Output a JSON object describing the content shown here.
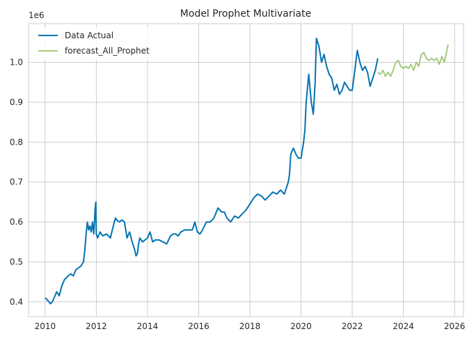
{
  "chart_data": {
    "type": "line",
    "title": "Model Prophet Multivariate",
    "xlabel": "",
    "ylabel": "",
    "y_offset_label": "1e6",
    "xlim": [
      2009.35,
      2026.35
    ],
    "ylim": [
      0.363,
      1.097
    ],
    "x_ticks": [
      2010,
      2012,
      2014,
      2016,
      2018,
      2020,
      2022,
      2024,
      2026
    ],
    "y_ticks": [
      0.4,
      0.5,
      0.6,
      0.7,
      0.8,
      0.9,
      1.0
    ],
    "grid": true,
    "legend_position": "top-left",
    "series": [
      {
        "name": "Data Actual",
        "color": "#0072B2",
        "x": [
          2010.0,
          2010.08,
          2010.15,
          2010.2,
          2010.28,
          2010.35,
          2010.45,
          2010.55,
          2010.65,
          2010.75,
          2010.9,
          2011.0,
          2011.1,
          2011.2,
          2011.3,
          2011.4,
          2011.5,
          2011.55,
          2011.6,
          2011.65,
          2011.7,
          2011.75,
          2011.8,
          2011.85,
          2011.9,
          2011.95,
          2011.98,
          2012.0,
          2012.05,
          2012.15,
          2012.25,
          2012.4,
          2012.55,
          2012.7,
          2012.75,
          2012.8,
          2012.9,
          2013.0,
          2013.1,
          2013.2,
          2013.3,
          2013.4,
          2013.5,
          2013.55,
          2013.6,
          2013.65,
          2013.7,
          2013.8,
          2013.9,
          2014.0,
          2014.1,
          2014.2,
          2014.3,
          2014.45,
          2014.6,
          2014.75,
          2014.9,
          2015.0,
          2015.1,
          2015.2,
          2015.3,
          2015.45,
          2015.6,
          2015.75,
          2015.85,
          2015.95,
          2016.05,
          2016.15,
          2016.3,
          2016.45,
          2016.6,
          2016.75,
          2016.9,
          2017.0,
          2017.1,
          2017.25,
          2017.4,
          2017.55,
          2017.7,
          2017.85,
          2018.0,
          2018.15,
          2018.3,
          2018.45,
          2018.6,
          2018.75,
          2018.9,
          2019.05,
          2019.2,
          2019.35,
          2019.5,
          2019.55,
          2019.6,
          2019.7,
          2019.8,
          2019.9,
          2020.0,
          2020.05,
          2020.1,
          2020.15,
          2020.2,
          2020.3,
          2020.4,
          2020.48,
          2020.55,
          2020.6,
          2020.7,
          2020.8,
          2020.9,
          2021.0,
          2021.1,
          2021.2,
          2021.3,
          2021.4,
          2021.5,
          2021.6,
          2021.7,
          2021.8,
          2021.9,
          2022.0,
          2022.1,
          2022.2,
          2022.3,
          2022.4,
          2022.5,
          2022.6,
          2022.7,
          2022.8,
          2022.9,
          2023.0
        ],
        "y": [
          0.41,
          0.405,
          0.4,
          0.395,
          0.4,
          0.41,
          0.425,
          0.415,
          0.44,
          0.455,
          0.465,
          0.47,
          0.465,
          0.48,
          0.485,
          0.49,
          0.5,
          0.53,
          0.57,
          0.6,
          0.58,
          0.59,
          0.575,
          0.6,
          0.57,
          0.63,
          0.65,
          0.57,
          0.56,
          0.575,
          0.565,
          0.57,
          0.56,
          0.6,
          0.61,
          0.605,
          0.6,
          0.605,
          0.6,
          0.56,
          0.575,
          0.55,
          0.53,
          0.515,
          0.52,
          0.545,
          0.56,
          0.55,
          0.555,
          0.56,
          0.575,
          0.55,
          0.555,
          0.555,
          0.55,
          0.545,
          0.565,
          0.57,
          0.57,
          0.565,
          0.575,
          0.58,
          0.58,
          0.58,
          0.6,
          0.575,
          0.57,
          0.58,
          0.6,
          0.6,
          0.61,
          0.635,
          0.625,
          0.625,
          0.61,
          0.6,
          0.615,
          0.61,
          0.62,
          0.63,
          0.645,
          0.66,
          0.67,
          0.665,
          0.655,
          0.665,
          0.675,
          0.67,
          0.68,
          0.67,
          0.7,
          0.72,
          0.77,
          0.785,
          0.77,
          0.76,
          0.76,
          0.78,
          0.8,
          0.83,
          0.9,
          0.97,
          0.9,
          0.87,
          0.95,
          1.06,
          1.04,
          1.0,
          1.02,
          0.99,
          0.97,
          0.96,
          0.93,
          0.945,
          0.92,
          0.93,
          0.95,
          0.94,
          0.93,
          0.93,
          0.98,
          1.03,
          1.0,
          0.98,
          0.99,
          0.975,
          0.94,
          0.96,
          0.98,
          1.01
        ]
      },
      {
        "name": "forecast_All_Prophet",
        "color": "#A5C97F",
        "x": [
          2023.0,
          2023.1,
          2023.2,
          2023.3,
          2023.4,
          2023.5,
          2023.6,
          2023.7,
          2023.8,
          2023.9,
          2024.0,
          2024.1,
          2024.2,
          2024.3,
          2024.4,
          2024.5,
          2024.6,
          2024.7,
          2024.8,
          2024.9,
          2025.0,
          2025.1,
          2025.2,
          2025.3,
          2025.4,
          2025.5,
          2025.6,
          2025.7,
          2025.75
        ],
        "y": [
          0.975,
          0.97,
          0.98,
          0.965,
          0.975,
          0.965,
          0.98,
          1.0,
          1.005,
          0.99,
          0.985,
          0.99,
          0.985,
          0.995,
          0.98,
          1.0,
          0.99,
          1.02,
          1.025,
          1.01,
          1.005,
          1.01,
          1.005,
          1.01,
          0.995,
          1.015,
          1.0,
          1.03,
          1.045
        ]
      }
    ]
  }
}
